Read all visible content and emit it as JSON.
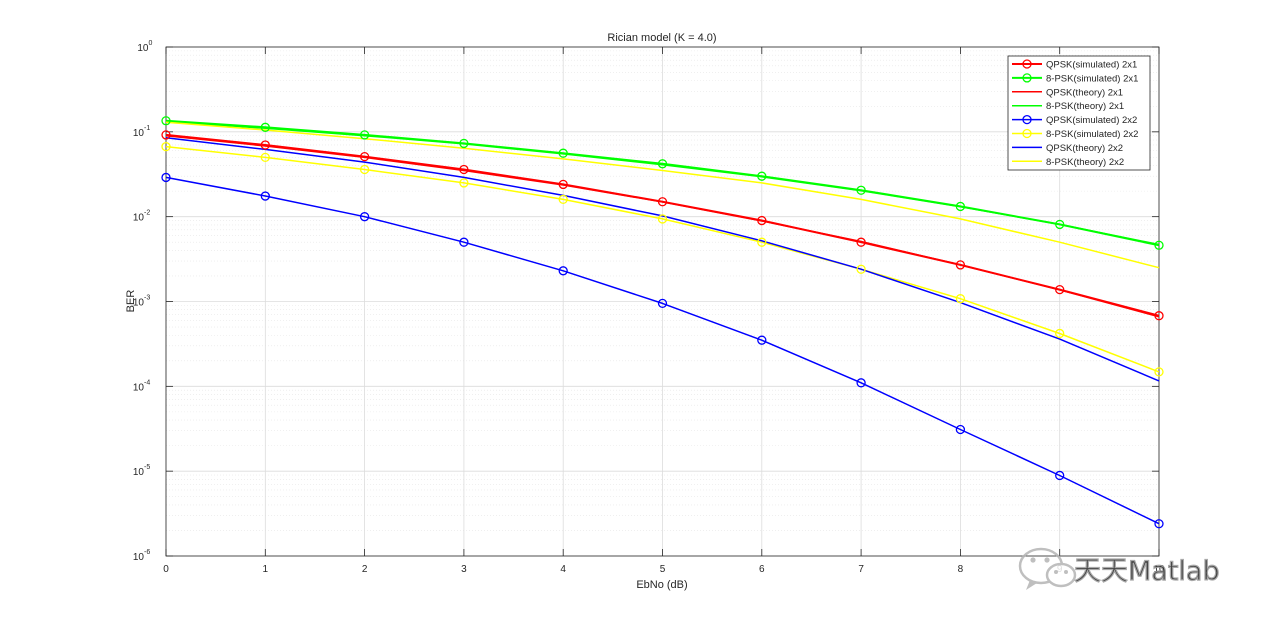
{
  "watermark": {
    "text": "天天Matlab"
  },
  "chart_data": {
    "type": "line",
    "title": "Rician model (K = 4.0)",
    "xlabel": "EbNo (dB)",
    "ylabel": "BER",
    "xlim": [
      0,
      10
    ],
    "ylim": [
      1e-06,
      1
    ],
    "yscale": "log",
    "grid": true,
    "minor_grid": true,
    "legend_position": "top-right",
    "x": [
      0,
      1,
      2,
      3,
      4,
      5,
      6,
      7,
      8,
      9,
      10
    ],
    "x_ticks": [
      "0",
      "1",
      "2",
      "3",
      "4",
      "5",
      "6",
      "7",
      "8",
      "9",
      "10"
    ],
    "y_ticks": [
      {
        "base": "10",
        "exp": "-6",
        "value": 1e-06
      },
      {
        "base": "10",
        "exp": "-5",
        "value": 1e-05
      },
      {
        "base": "10",
        "exp": "-4",
        "value": 0.0001
      },
      {
        "base": "10",
        "exp": "-3",
        "value": 0.001
      },
      {
        "base": "10",
        "exp": "-2",
        "value": 0.01
      },
      {
        "base": "10",
        "exp": "-1",
        "value": 0.1
      },
      {
        "base": "10",
        "exp": "0",
        "value": 1
      }
    ],
    "series": [
      {
        "name": "QPSK(simulated) 2x1",
        "color": "#ff0000",
        "marker": "circle",
        "width": 2,
        "values": [
          0.092,
          0.07,
          0.051,
          0.036,
          0.024,
          0.015,
          0.009,
          0.005,
          0.0027,
          0.00138,
          0.00068
        ]
      },
      {
        "name": "8-PSK(simulated) 2x1",
        "color": "#00ff00",
        "marker": "circle",
        "width": 2,
        "values": [
          0.135,
          0.113,
          0.092,
          0.073,
          0.056,
          0.042,
          0.03,
          0.0205,
          0.0132,
          0.0081,
          0.0046
        ]
      },
      {
        "name": "QPSK(theory) 2x1",
        "color": "#ff0000",
        "marker": "none",
        "width": 1.5,
        "values": [
          0.09,
          0.068,
          0.05,
          0.035,
          0.0236,
          0.0149,
          0.0089,
          0.0051,
          0.0027,
          0.00137,
          0.00066
        ]
      },
      {
        "name": "8-PSK(theory) 2x1",
        "color": "#00ff00",
        "marker": "none",
        "width": 1.5,
        "values": [
          0.132,
          0.11,
          0.09,
          0.072,
          0.055,
          0.041,
          0.0295,
          0.0202,
          0.0131,
          0.0081,
          0.0047
        ]
      },
      {
        "name": "QPSK(simulated) 2x2",
        "color": "#0000ff",
        "marker": "circle",
        "width": 1.5,
        "values": [
          0.029,
          0.0175,
          0.01,
          0.005,
          0.0023,
          0.00095,
          0.00035,
          0.00011,
          3.1e-05,
          8.9e-06,
          2.4e-06
        ]
      },
      {
        "name": "8-PSK(simulated) 2x2",
        "color": "#ffff00",
        "marker": "circle",
        "width": 1.5,
        "values": [
          0.067,
          0.05,
          0.036,
          0.025,
          0.016,
          0.0094,
          0.005,
          0.0024,
          0.00108,
          0.00042,
          0.000148
        ]
      },
      {
        "name": "QPSK(theory) 2x2",
        "color": "#0000ff",
        "marker": "none",
        "width": 1.5,
        "values": [
          0.085,
          0.062,
          0.044,
          0.029,
          0.0178,
          0.0102,
          0.0052,
          0.0024,
          0.00097,
          0.00036,
          0.000116
        ]
      },
      {
        "name": "8-PSK(theory) 2x2",
        "color": "#ffff00",
        "marker": "none",
        "width": 1.5,
        "values": [
          0.13,
          0.105,
          0.083,
          0.064,
          0.048,
          0.035,
          0.025,
          0.016,
          0.0094,
          0.005,
          0.0025
        ]
      }
    ]
  }
}
